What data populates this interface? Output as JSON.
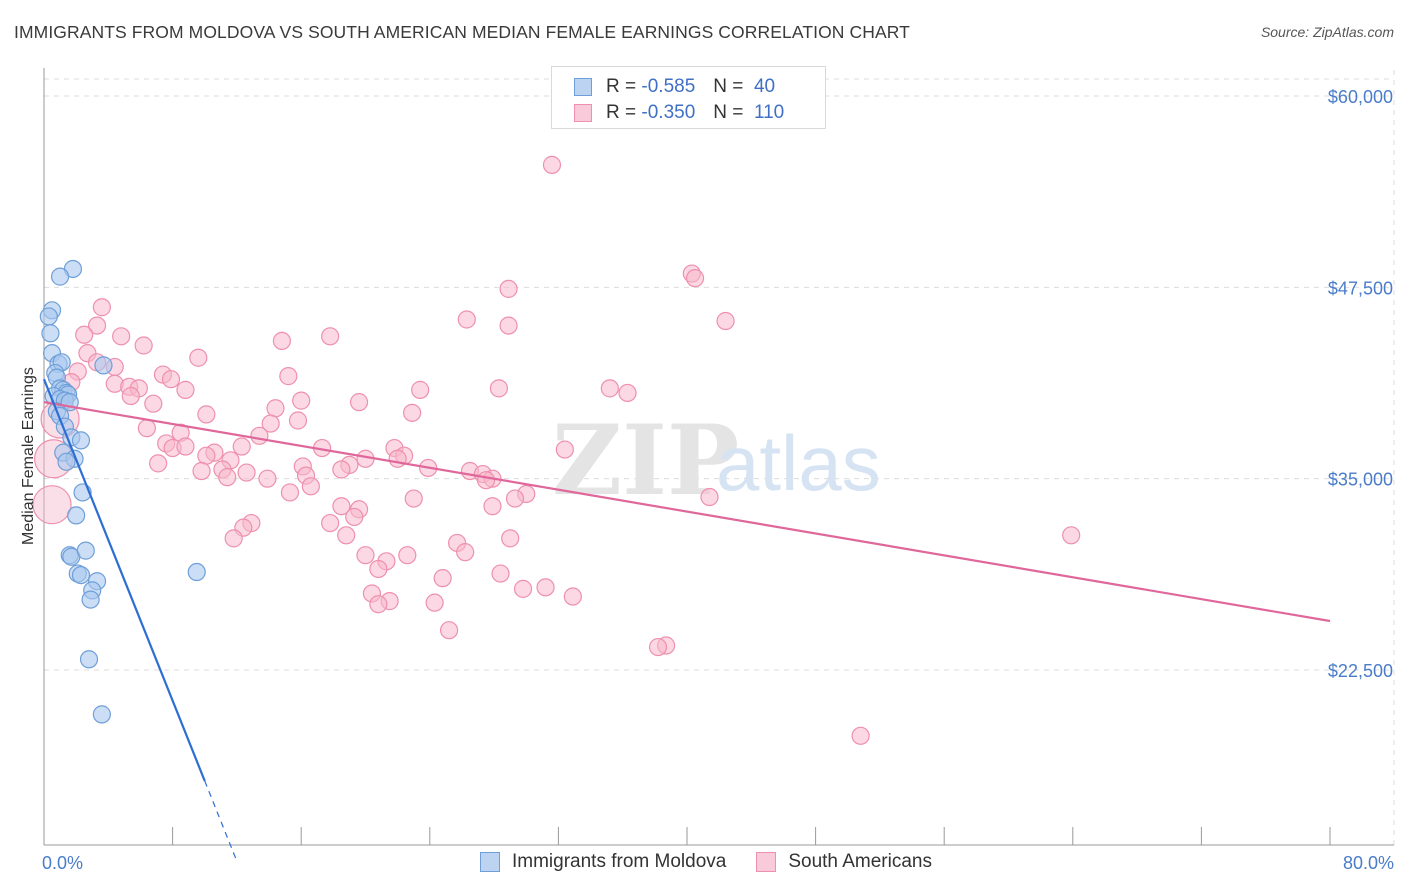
{
  "title": "IMMIGRANTS FROM MOLDOVA VS SOUTH AMERICAN MEDIAN FEMALE EARNINGS CORRELATION CHART",
  "source": "Source: ZipAtlas.com",
  "watermark": {
    "zip": "ZIP",
    "atlas": "atlas"
  },
  "legend": {
    "rows": [
      {
        "r_label": "R =",
        "r_value": "-0.585",
        "n_label": "N =",
        "n_value": "40"
      },
      {
        "r_label": "R =",
        "r_value": "-0.350",
        "n_label": "N =",
        "n_value": "110"
      }
    ]
  },
  "colors": {
    "series1_fill": "#a9c8ee",
    "series1_stroke": "#6f9fd8",
    "series1_line": "#2d6ed4",
    "series2_fill": "#f7b8cc",
    "series2_stroke": "#ee90ae",
    "series2_line": "#e0679a",
    "grid": "#dcdcdc",
    "tick_text": "#4a7cc9"
  },
  "chart_data": {
    "type": "scatter",
    "title": "IMMIGRANTS FROM MOLDOVA VS SOUTH AMERICAN MEDIAN FEMALE EARNINGS CORRELATION CHART",
    "xlabel": "",
    "ylabel": "Median Female Earnings",
    "xlim": [
      0,
      80
    ],
    "ylim": [
      10000,
      62500
    ],
    "x_tick_labels": [
      "0.0%",
      "80.0%"
    ],
    "y_ticks": [
      22500,
      35000,
      47500,
      60000
    ],
    "y_tick_labels": [
      "$22,500",
      "$35,000",
      "$47,500",
      "$60,000"
    ],
    "grid": true,
    "series": [
      {
        "name": "Immigrants from Moldova",
        "color": "#a9c8ee",
        "r": -0.585,
        "n": 40,
        "trend": {
          "x0": 0,
          "y0": 41500,
          "x1": 12,
          "y1": 10000,
          "solid_until_x": 10
        },
        "points": [
          [
            1.8,
            48700
          ],
          [
            1.0,
            48200
          ],
          [
            0.5,
            46000
          ],
          [
            0.3,
            45600
          ],
          [
            0.4,
            44500
          ],
          [
            0.5,
            43200
          ],
          [
            0.9,
            42500
          ],
          [
            1.1,
            42600
          ],
          [
            3.7,
            42400
          ],
          [
            0.7,
            41900
          ],
          [
            0.8,
            41600
          ],
          [
            1.0,
            40900
          ],
          [
            1.2,
            40800
          ],
          [
            1.4,
            40600
          ],
          [
            1.5,
            40500
          ],
          [
            0.6,
            40400
          ],
          [
            1.0,
            40200
          ],
          [
            1.3,
            40100
          ],
          [
            1.6,
            40000
          ],
          [
            0.8,
            39400
          ],
          [
            1.0,
            39100
          ],
          [
            1.3,
            38400
          ],
          [
            1.7,
            37700
          ],
          [
            2.3,
            37500
          ],
          [
            1.2,
            36700
          ],
          [
            1.9,
            36300
          ],
          [
            1.4,
            36100
          ],
          [
            2.4,
            34100
          ],
          [
            2.0,
            32600
          ],
          [
            1.6,
            30000
          ],
          [
            1.7,
            29900
          ],
          [
            2.6,
            30300
          ],
          [
            2.1,
            28800
          ],
          [
            2.3,
            28700
          ],
          [
            9.5,
            28900
          ],
          [
            3.3,
            28300
          ],
          [
            3.0,
            27700
          ],
          [
            2.9,
            27100
          ],
          [
            2.8,
            23200
          ],
          [
            3.6,
            19600
          ]
        ]
      },
      {
        "name": "South Americans",
        "color": "#f7b8cc",
        "r": -0.35,
        "n": 110,
        "trend": {
          "x0": 0,
          "y0": 40000,
          "x1": 80,
          "y1": 25700
        },
        "points": [
          [
            31.6,
            55500
          ],
          [
            28.9,
            47400
          ],
          [
            40.3,
            48400
          ],
          [
            40.5,
            48100
          ],
          [
            26.3,
            45400
          ],
          [
            28.9,
            45000
          ],
          [
            42.4,
            45300
          ],
          [
            3.6,
            46200
          ],
          [
            3.3,
            45000
          ],
          [
            4.8,
            44300
          ],
          [
            2.5,
            44400
          ],
          [
            6.2,
            43700
          ],
          [
            14.8,
            44000
          ],
          [
            17.8,
            44300
          ],
          [
            2.7,
            43200
          ],
          [
            9.6,
            42900
          ],
          [
            3.3,
            42600
          ],
          [
            4.4,
            42300
          ],
          [
            2.1,
            42000
          ],
          [
            7.4,
            41800
          ],
          [
            7.9,
            41500
          ],
          [
            15.2,
            41700
          ],
          [
            1.7,
            41300
          ],
          [
            4.4,
            41200
          ],
          [
            5.3,
            41000
          ],
          [
            5.9,
            40900
          ],
          [
            8.8,
            40800
          ],
          [
            23.4,
            40800
          ],
          [
            28.3,
            40900
          ],
          [
            35.2,
            40900
          ],
          [
            36.3,
            40600
          ],
          [
            5.4,
            40400
          ],
          [
            16.0,
            40100
          ],
          [
            19.6,
            40000
          ],
          [
            6.8,
            39900
          ],
          [
            14.4,
            39600
          ],
          [
            22.9,
            39300
          ],
          [
            10.1,
            39200
          ],
          [
            15.8,
            38800
          ],
          [
            14.1,
            38600
          ],
          [
            6.4,
            38300
          ],
          [
            8.5,
            38000
          ],
          [
            13.4,
            37800
          ],
          [
            7.6,
            37300
          ],
          [
            12.3,
            37100
          ],
          [
            8.0,
            37000
          ],
          [
            8.8,
            37100
          ],
          [
            17.3,
            37000
          ],
          [
            21.8,
            37000
          ],
          [
            32.4,
            36900
          ],
          [
            10.6,
            36700
          ],
          [
            22.4,
            36500
          ],
          [
            10.1,
            36500
          ],
          [
            22.0,
            36300
          ],
          [
            20.0,
            36300
          ],
          [
            11.6,
            36200
          ],
          [
            7.1,
            36000
          ],
          [
            19.0,
            35900
          ],
          [
            16.1,
            35800
          ],
          [
            18.5,
            35600
          ],
          [
            9.8,
            35500
          ],
          [
            23.9,
            35700
          ],
          [
            11.1,
            35600
          ],
          [
            12.6,
            35400
          ],
          [
            26.5,
            35500
          ],
          [
            27.3,
            35300
          ],
          [
            16.3,
            35200
          ],
          [
            11.4,
            35100
          ],
          [
            13.9,
            35000
          ],
          [
            27.9,
            35000
          ],
          [
            27.5,
            34900
          ],
          [
            16.6,
            34500
          ],
          [
            15.3,
            34100
          ],
          [
            30.0,
            34000
          ],
          [
            23.0,
            33700
          ],
          [
            29.3,
            33700
          ],
          [
            41.4,
            33800
          ],
          [
            27.9,
            33200
          ],
          [
            18.5,
            33200
          ],
          [
            19.6,
            33000
          ],
          [
            12.9,
            32100
          ],
          [
            17.8,
            32100
          ],
          [
            19.3,
            32500
          ],
          [
            12.4,
            31800
          ],
          [
            18.8,
            31300
          ],
          [
            11.8,
            31100
          ],
          [
            29.0,
            31100
          ],
          [
            63.9,
            31300
          ],
          [
            25.7,
            30800
          ],
          [
            26.2,
            30200
          ],
          [
            22.6,
            30000
          ],
          [
            20.0,
            30000
          ],
          [
            21.3,
            29600
          ],
          [
            20.8,
            29100
          ],
          [
            24.8,
            28500
          ],
          [
            28.4,
            28800
          ],
          [
            29.8,
            27800
          ],
          [
            31.2,
            27900
          ],
          [
            32.9,
            27300
          ],
          [
            20.4,
            27500
          ],
          [
            21.5,
            27000
          ],
          [
            24.3,
            26900
          ],
          [
            20.8,
            26800
          ],
          [
            25.2,
            25100
          ],
          [
            38.7,
            24100
          ],
          [
            38.2,
            24000
          ],
          [
            50.8,
            18200
          ],
          [
            0.6,
            36300
          ],
          [
            1.0,
            38900
          ],
          [
            0.5,
            33300
          ]
        ],
        "large_points": [
          [
            0.6,
            36300
          ],
          [
            1.0,
            38900
          ],
          [
            0.5,
            33300
          ]
        ]
      }
    ]
  },
  "bottom_legend": {
    "items": [
      {
        "label": "Immigrants from Moldova"
      },
      {
        "label": "South Americans"
      }
    ]
  }
}
